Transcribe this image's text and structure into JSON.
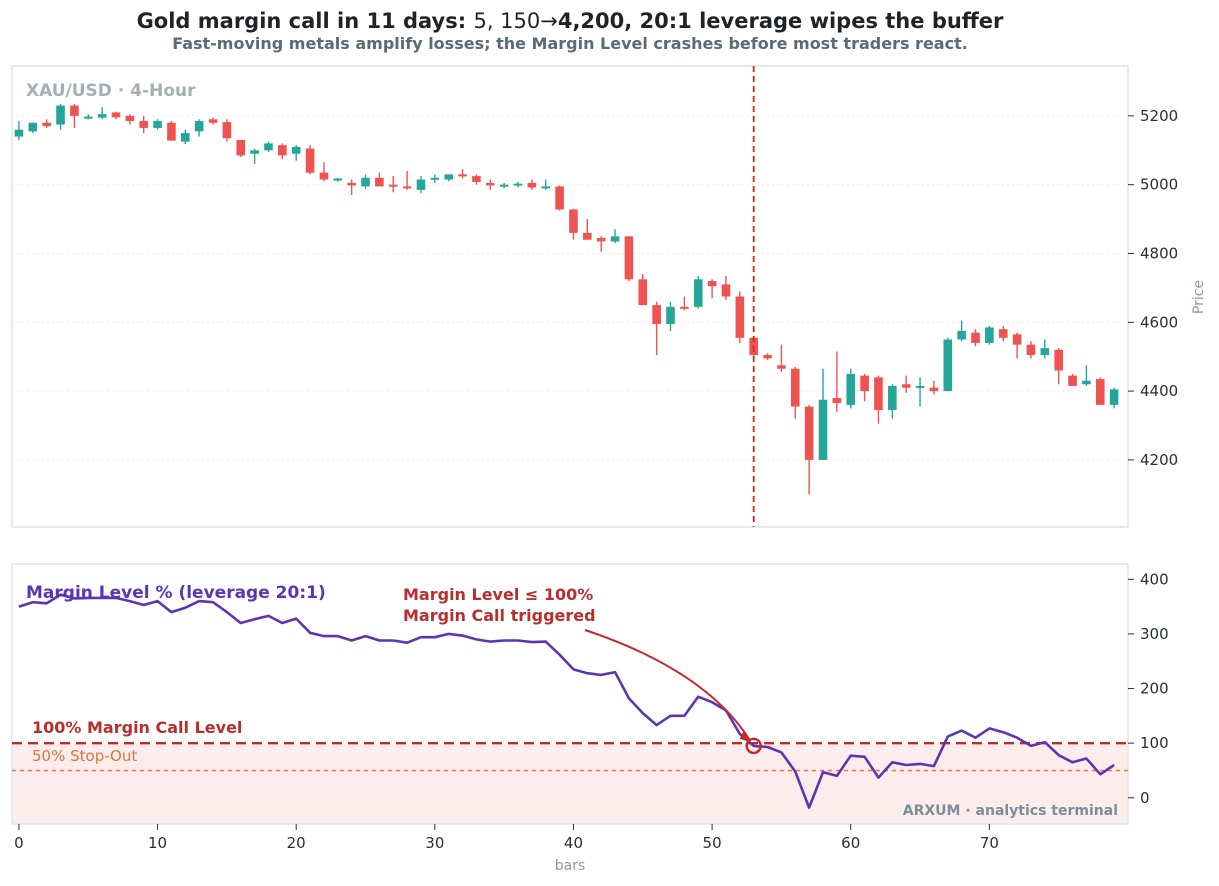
{
  "title_plain": "Gold margin call in 11 days: ",
  "title_math": "5, 150→",
  "title_bold": "4,200, 20:1 leverage wipes the buffer",
  "subtitle": "Fast-moving metals amplify losses; the Margin Level crashes before most traders react.",
  "colors": {
    "up": "#26a69a",
    "down": "#ef5350",
    "margin_line": "#5e35b1",
    "call_level": "#c62828",
    "stop_out": "#e08040",
    "danger_fill": "#fdecec",
    "event_marker": "#c62828"
  },
  "chart_data": [
    {
      "type": "candlestick",
      "panel_label": "XAU/USD · 4-Hour",
      "ylabel": "Price",
      "yticks": [
        4200,
        4400,
        4600,
        4800,
        5000,
        5200
      ],
      "ylim": [
        4005,
        5345
      ],
      "xlim": [
        -0.5,
        80
      ],
      "grid": true,
      "event_bar": 53,
      "candles": [
        {
          "x": 0,
          "o": 5140,
          "h": 5185,
          "l": 5130,
          "c": 5160
        },
        {
          "x": 1,
          "o": 5155,
          "h": 5180,
          "l": 5150,
          "c": 5180
        },
        {
          "x": 2,
          "o": 5180,
          "h": 5190,
          "l": 5165,
          "c": 5170
        },
        {
          "x": 3,
          "o": 5175,
          "h": 5235,
          "l": 5160,
          "c": 5230
        },
        {
          "x": 4,
          "o": 5230,
          "h": 5235,
          "l": 5165,
          "c": 5200
        },
        {
          "x": 5,
          "o": 5195,
          "h": 5205,
          "l": 5190,
          "c": 5198
        },
        {
          "x": 6,
          "o": 5195,
          "h": 5225,
          "l": 5190,
          "c": 5205
        },
        {
          "x": 7,
          "o": 5210,
          "h": 5212,
          "l": 5190,
          "c": 5196
        },
        {
          "x": 8,
          "o": 5200,
          "h": 5205,
          "l": 5175,
          "c": 5185
        },
        {
          "x": 9,
          "o": 5185,
          "h": 5200,
          "l": 5150,
          "c": 5165
        },
        {
          "x": 10,
          "o": 5165,
          "h": 5190,
          "l": 5160,
          "c": 5185
        },
        {
          "x": 11,
          "o": 5180,
          "h": 5185,
          "l": 5128,
          "c": 5128
        },
        {
          "x": 12,
          "o": 5125,
          "h": 5160,
          "l": 5118,
          "c": 5150
        },
        {
          "x": 13,
          "o": 5155,
          "h": 5190,
          "l": 5140,
          "c": 5185
        },
        {
          "x": 14,
          "o": 5190,
          "h": 5195,
          "l": 5175,
          "c": 5180
        },
        {
          "x": 15,
          "o": 5182,
          "h": 5190,
          "l": 5125,
          "c": 5135
        },
        {
          "x": 16,
          "o": 5130,
          "h": 5130,
          "l": 5080,
          "c": 5085
        },
        {
          "x": 17,
          "o": 5090,
          "h": 5105,
          "l": 5060,
          "c": 5100
        },
        {
          "x": 18,
          "o": 5100,
          "h": 5125,
          "l": 5095,
          "c": 5120
        },
        {
          "x": 19,
          "o": 5115,
          "h": 5120,
          "l": 5075,
          "c": 5085
        },
        {
          "x": 20,
          "o": 5090,
          "h": 5115,
          "l": 5070,
          "c": 5110
        },
        {
          "x": 21,
          "o": 5105,
          "h": 5115,
          "l": 5030,
          "c": 5035
        },
        {
          "x": 22,
          "o": 5035,
          "h": 5065,
          "l": 5010,
          "c": 5015
        },
        {
          "x": 23,
          "o": 5015,
          "h": 5020,
          "l": 5008,
          "c": 5018
        },
        {
          "x": 24,
          "o": 5005,
          "h": 5015,
          "l": 4970,
          "c": 4998
        },
        {
          "x": 25,
          "o": 4995,
          "h": 5030,
          "l": 4988,
          "c": 5020
        },
        {
          "x": 26,
          "o": 5020,
          "h": 5035,
          "l": 4995,
          "c": 4995
        },
        {
          "x": 27,
          "o": 5000,
          "h": 5025,
          "l": 4978,
          "c": 4998
        },
        {
          "x": 28,
          "o": 4995,
          "h": 5040,
          "l": 4985,
          "c": 4990
        },
        {
          "x": 29,
          "o": 4985,
          "h": 5025,
          "l": 4975,
          "c": 5015
        },
        {
          "x": 30,
          "o": 5015,
          "h": 5030,
          "l": 5005,
          "c": 5020
        },
        {
          "x": 31,
          "o": 5015,
          "h": 5030,
          "l": 5010,
          "c": 5030
        },
        {
          "x": 32,
          "o": 5030,
          "h": 5045,
          "l": 5018,
          "c": 5025
        },
        {
          "x": 33,
          "o": 5025,
          "h": 5030,
          "l": 5000,
          "c": 5008
        },
        {
          "x": 34,
          "o": 5005,
          "h": 5015,
          "l": 4985,
          "c": 4998
        },
        {
          "x": 35,
          "o": 4995,
          "h": 5005,
          "l": 4990,
          "c": 5000
        },
        {
          "x": 36,
          "o": 4998,
          "h": 5008,
          "l": 4992,
          "c": 5003
        },
        {
          "x": 37,
          "o": 5005,
          "h": 5015,
          "l": 4985,
          "c": 4992
        },
        {
          "x": 38,
          "o": 4990,
          "h": 5015,
          "l": 4985,
          "c": 4995
        },
        {
          "x": 39,
          "o": 4995,
          "h": 4998,
          "l": 4925,
          "c": 4928
        },
        {
          "x": 40,
          "o": 4928,
          "h": 4930,
          "l": 4840,
          "c": 4860
        },
        {
          "x": 41,
          "o": 4860,
          "h": 4900,
          "l": 4840,
          "c": 4840
        },
        {
          "x": 42,
          "o": 4845,
          "h": 4850,
          "l": 4805,
          "c": 4835
        },
        {
          "x": 43,
          "o": 4835,
          "h": 4870,
          "l": 4830,
          "c": 4850
        },
        {
          "x": 44,
          "o": 4850,
          "h": 4850,
          "l": 4720,
          "c": 4725
        },
        {
          "x": 45,
          "o": 4725,
          "h": 4740,
          "l": 4650,
          "c": 4650
        },
        {
          "x": 46,
          "o": 4650,
          "h": 4660,
          "l": 4505,
          "c": 4595
        },
        {
          "x": 47,
          "o": 4595,
          "h": 4660,
          "l": 4575,
          "c": 4645
        },
        {
          "x": 48,
          "o": 4645,
          "h": 4675,
          "l": 4635,
          "c": 4640
        },
        {
          "x": 49,
          "o": 4645,
          "h": 4735,
          "l": 4640,
          "c": 4725
        },
        {
          "x": 50,
          "o": 4720,
          "h": 4725,
          "l": 4670,
          "c": 4705
        },
        {
          "x": 51,
          "o": 4710,
          "h": 4735,
          "l": 4665,
          "c": 4675
        },
        {
          "x": 52,
          "o": 4675,
          "h": 4690,
          "l": 4540,
          "c": 4555
        },
        {
          "x": 53,
          "o": 4555,
          "h": 4560,
          "l": 4500,
          "c": 4505
        },
        {
          "x": 54,
          "o": 4505,
          "h": 4510,
          "l": 4490,
          "c": 4495
        },
        {
          "x": 55,
          "o": 4475,
          "h": 4535,
          "l": 4455,
          "c": 4465
        },
        {
          "x": 56,
          "o": 4465,
          "h": 4470,
          "l": 4320,
          "c": 4355
        },
        {
          "x": 57,
          "o": 4355,
          "h": 4360,
          "l": 4100,
          "c": 4200
        },
        {
          "x": 58,
          "o": 4200,
          "h": 4465,
          "l": 4200,
          "c": 4375
        },
        {
          "x": 59,
          "o": 4380,
          "h": 4515,
          "l": 4340,
          "c": 4365
        },
        {
          "x": 60,
          "o": 4360,
          "h": 4465,
          "l": 4350,
          "c": 4450
        },
        {
          "x": 61,
          "o": 4445,
          "h": 4450,
          "l": 4370,
          "c": 4400
        },
        {
          "x": 62,
          "o": 4440,
          "h": 4445,
          "l": 4305,
          "c": 4345
        },
        {
          "x": 63,
          "o": 4345,
          "h": 4420,
          "l": 4320,
          "c": 4415
        },
        {
          "x": 64,
          "o": 4420,
          "h": 4445,
          "l": 4395,
          "c": 4410
        },
        {
          "x": 65,
          "o": 4410,
          "h": 4440,
          "l": 4355,
          "c": 4415
        },
        {
          "x": 66,
          "o": 4410,
          "h": 4430,
          "l": 4390,
          "c": 4400
        },
        {
          "x": 67,
          "o": 4400,
          "h": 4555,
          "l": 4400,
          "c": 4550
        },
        {
          "x": 68,
          "o": 4550,
          "h": 4605,
          "l": 4545,
          "c": 4575
        },
        {
          "x": 69,
          "o": 4570,
          "h": 4580,
          "l": 4530,
          "c": 4540
        },
        {
          "x": 70,
          "o": 4540,
          "h": 4590,
          "l": 4535,
          "c": 4585
        },
        {
          "x": 71,
          "o": 4580,
          "h": 4590,
          "l": 4545,
          "c": 4555
        },
        {
          "x": 72,
          "o": 4565,
          "h": 4570,
          "l": 4495,
          "c": 4535
        },
        {
          "x": 73,
          "o": 4535,
          "h": 4545,
          "l": 4495,
          "c": 4505
        },
        {
          "x": 74,
          "o": 4505,
          "h": 4550,
          "l": 4495,
          "c": 4525
        },
        {
          "x": 75,
          "o": 4520,
          "h": 4525,
          "l": 4420,
          "c": 4460
        },
        {
          "x": 76,
          "o": 4445,
          "h": 4450,
          "l": 4415,
          "c": 4415
        },
        {
          "x": 77,
          "o": 4420,
          "h": 4475,
          "l": 4415,
          "c": 4430
        },
        {
          "x": 78,
          "o": 4435,
          "h": 4440,
          "l": 4360,
          "c": 4360
        },
        {
          "x": 79,
          "o": 4360,
          "h": 4410,
          "l": 4350,
          "c": 4405
        }
      ]
    },
    {
      "type": "line",
      "series": [
        {
          "name": "Margin Level %  (leverage 20:1)",
          "x": [
            0,
            1,
            2,
            3,
            4,
            5,
            6,
            7,
            8,
            9,
            10,
            11,
            12,
            13,
            14,
            15,
            16,
            17,
            18,
            19,
            20,
            21,
            22,
            23,
            24,
            25,
            26,
            27,
            28,
            29,
            30,
            31,
            32,
            33,
            34,
            35,
            36,
            37,
            38,
            39,
            40,
            41,
            42,
            43,
            44,
            45,
            46,
            47,
            48,
            49,
            50,
            51,
            52,
            53,
            54,
            55,
            56,
            57,
            58,
            59,
            60,
            61,
            62,
            63,
            64,
            65,
            66,
            67,
            68,
            69,
            70,
            71,
            72,
            73,
            74,
            75,
            76,
            77,
            78,
            79
          ],
          "values": [
            350,
            358,
            356,
            372,
            365,
            366,
            366,
            366,
            360,
            353,
            360,
            340,
            348,
            360,
            358,
            340,
            320,
            327,
            333,
            320,
            328,
            302,
            296,
            296,
            288,
            296,
            288,
            288,
            284,
            294,
            294,
            300,
            297,
            290,
            286,
            288,
            288,
            285,
            286,
            262,
            235,
            228,
            225,
            230,
            182,
            155,
            133,
            150,
            150,
            185,
            175,
            160,
            117,
            95,
            93,
            83,
            48,
            -18,
            47,
            40,
            77,
            75,
            37,
            65,
            60,
            62,
            58,
            112,
            123,
            110,
            127,
            120,
            110,
            95,
            102,
            78,
            65,
            72,
            43,
            60
          ]
        }
      ],
      "yticks": [
        0,
        100,
        200,
        300,
        400
      ],
      "ylim": [
        -48,
        428
      ],
      "xlim": [
        -0.5,
        80
      ],
      "xticks": [
        0,
        10,
        20,
        30,
        40,
        50,
        60,
        70
      ],
      "xlabel": "bars",
      "grid": false,
      "event": {
        "x": 53,
        "y": 95
      },
      "levels": [
        {
          "value": 100,
          "label": "100%  Margin Call Level"
        },
        {
          "value": 50,
          "label": "50%  Stop-Out"
        }
      ],
      "annotation": "Margin Level ≤ 100%\nMargin Call triggered",
      "annotation_lines": [
        "Margin Level ≤ 100%",
        "Margin Call triggered"
      ],
      "watermark": "ARXUM · analytics terminal"
    }
  ]
}
